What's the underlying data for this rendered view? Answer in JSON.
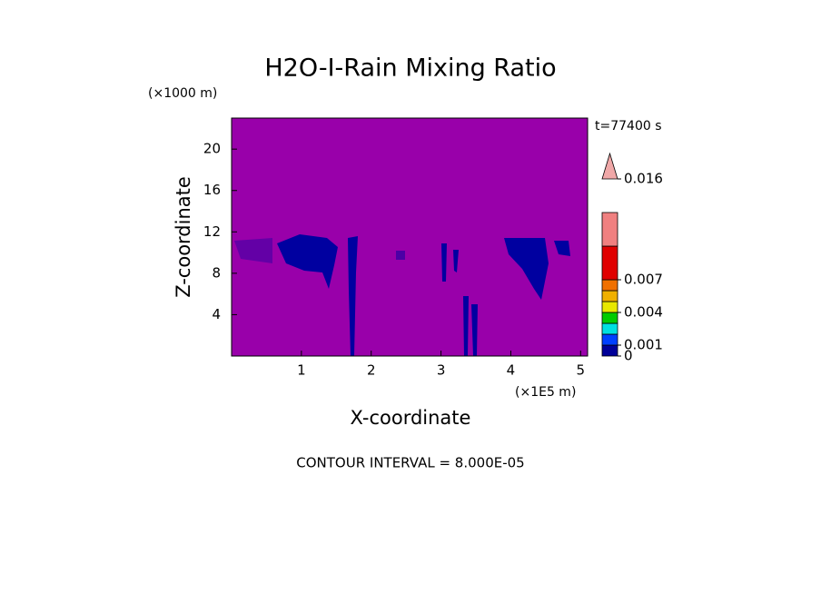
{
  "chart_data": {
    "type": "contour",
    "title": "H2O-I-Rain Mixing Ratio",
    "y_unit": "(×1000 m)",
    "x_unit": "(×1E5 m)",
    "time_label": "t=77400 s",
    "x_label": "X-coordinate",
    "y_label": "Z-coordinate",
    "footer": "CONTOUR INTERVAL = 8.000E-05",
    "xlim": [
      0,
      5.1
    ],
    "ylim": [
      0,
      23
    ],
    "xticks": [
      1,
      2,
      3,
      4,
      5
    ],
    "yticks": [
      4,
      8,
      12,
      16,
      20
    ],
    "background_color": "#9900aa",
    "field_color": "#0000a0",
    "colorbar": {
      "levels": [
        0,
        0.001,
        0.002,
        0.003,
        0.004,
        0.005,
        0.006,
        0.007,
        0.01,
        0.013,
        0.016
      ],
      "colors": [
        "#000099",
        "#0040ff",
        "#00e0e0",
        "#00cc00",
        "#e8e800",
        "#f0b000",
        "#f07000",
        "#e00000",
        "#f08080"
      ],
      "extend_color": "#f0a8a8",
      "ticks": [
        0,
        0.001,
        0.004,
        0.007,
        0.016
      ]
    }
  }
}
